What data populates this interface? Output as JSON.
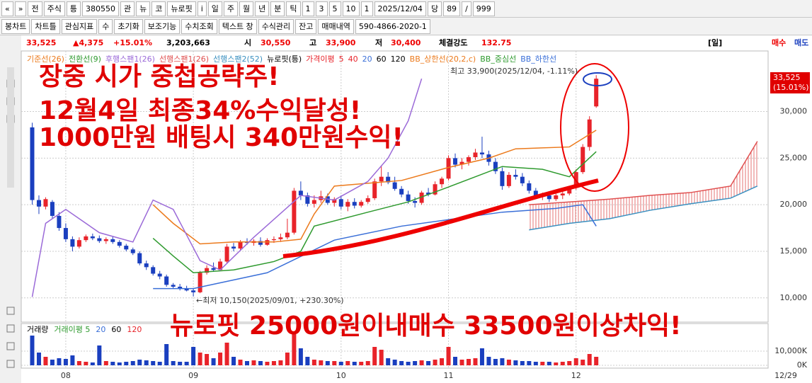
{
  "toolbar": {
    "row1": [
      "«",
      "»",
      "전",
      "주식",
      "틍",
      "380550",
      "관",
      "뉴",
      "코",
      "뉴로핏",
      "i",
      "일",
      "주",
      "월",
      "년",
      "분",
      "틱",
      "1",
      "3",
      "5",
      "10",
      "1",
      "2025/12/04",
      "당",
      "89",
      "/",
      "999"
    ],
    "row2": [
      "봉차트",
      "차트틀",
      "관심지표",
      "수",
      "초기화",
      "보조기능",
      "수치조회",
      "텍스트 창",
      "수식관리",
      "잔고",
      "매매내역",
      "590-4866-2020-1"
    ]
  },
  "info": [
    "33,525",
    "▲4,375",
    "+15.01%",
    "3,203,663",
    "시",
    "30,550",
    "고",
    "33,900",
    "저",
    "30,400",
    "체결강도",
    "132.75",
    "[일]",
    "매수",
    "매도"
  ],
  "chart_data": [
    {
      "type": "candlestick",
      "xlim": [
        -1,
        109.6
      ],
      "ylim": [
        7400,
        36500
      ],
      "yticks": [
        {
          "value": 10000,
          "label": "10,000"
        },
        {
          "value": 15000,
          "label": "15,000"
        },
        {
          "value": 20000,
          "label": "20,000"
        },
        {
          "value": 25000,
          "label": "25,000"
        },
        {
          "value": 30000,
          "label": "30,000"
        }
      ],
      "grid": true,
      "up_color": "#e8232a",
      "down_color": "#1a3fbf",
      "ohlc": [
        [
          28300,
          28800,
          20000,
          20500
        ],
        [
          20500,
          21000,
          19000,
          19800
        ],
        [
          19800,
          20800,
          19500,
          20600
        ],
        [
          20300,
          20500,
          18500,
          18800
        ],
        [
          18800,
          19200,
          17200,
          17500
        ],
        [
          17500,
          18000,
          16000,
          16300
        ],
        [
          16300,
          16600,
          15000,
          15500
        ],
        [
          15500,
          16500,
          15300,
          16200
        ],
        [
          16200,
          16800,
          16000,
          16600
        ],
        [
          16600,
          16900,
          16200,
          16400
        ],
        [
          16400,
          16700,
          15900,
          16100
        ],
        [
          16100,
          16500,
          15800,
          16300
        ],
        [
          16300,
          16600,
          15800,
          16000
        ],
        [
          16000,
          16200,
          15400,
          15600
        ],
        [
          15600,
          15800,
          15000,
          15200
        ],
        [
          15200,
          15400,
          14600,
          14800
        ],
        [
          14800,
          15000,
          13500,
          13700
        ],
        [
          13700,
          14000,
          13000,
          13300
        ],
        [
          13300,
          13500,
          12400,
          12600
        ],
        [
          12600,
          12900,
          12000,
          12300
        ],
        [
          12300,
          12500,
          11200,
          11400
        ],
        [
          11400,
          11600,
          11000,
          11200
        ],
        [
          11200,
          11500,
          10800,
          11000
        ],
        [
          11000,
          11300,
          10700,
          10800
        ],
        [
          10800,
          11000,
          10150,
          10600
        ],
        [
          10600,
          12900,
          10500,
          12700
        ],
        [
          12700,
          13500,
          12500,
          13200
        ],
        [
          13200,
          13800,
          12800,
          13000
        ],
        [
          13000,
          14200,
          12900,
          13900
        ],
        [
          13900,
          15800,
          13700,
          15500
        ],
        [
          15500,
          15900,
          15000,
          15300
        ],
        [
          15300,
          16200,
          15100,
          16000
        ],
        [
          16000,
          16400,
          15700,
          15900
        ],
        [
          15900,
          16300,
          15600,
          16100
        ],
        [
          16100,
          16500,
          15500,
          15700
        ],
        [
          15700,
          16400,
          15600,
          16200
        ],
        [
          16200,
          16600,
          15900,
          16300
        ],
        [
          16300,
          16900,
          16000,
          16500
        ],
        [
          16500,
          18500,
          16300,
          17000
        ],
        [
          17000,
          21800,
          16800,
          21500
        ],
        [
          21500,
          22500,
          20500,
          21000
        ],
        [
          21000,
          21300,
          19800,
          20100
        ],
        [
          20100,
          21000,
          19700,
          20500
        ],
        [
          20500,
          21500,
          20200,
          20900
        ],
        [
          20900,
          21200,
          20000,
          20200
        ],
        [
          20200,
          20800,
          19800,
          20600
        ],
        [
          20600,
          21000,
          19500,
          19800
        ],
        [
          19800,
          20600,
          19300,
          20300
        ],
        [
          20300,
          20700,
          19600,
          19900
        ],
        [
          19900,
          20500,
          19700,
          20300
        ],
        [
          20300,
          21000,
          20100,
          20700
        ],
        [
          20700,
          22800,
          20500,
          22500
        ],
        [
          22500,
          24200,
          22000,
          23000
        ],
        [
          23000,
          23500,
          22200,
          22400
        ],
        [
          22400,
          23000,
          21500,
          21700
        ],
        [
          21700,
          22000,
          20800,
          21100
        ],
        [
          21100,
          21500,
          20100,
          20400
        ],
        [
          20400,
          20800,
          19700,
          20200
        ],
        [
          20200,
          21500,
          20000,
          21300
        ],
        [
          21300,
          21800,
          20900,
          21100
        ],
        [
          21100,
          22500,
          21000,
          22200
        ],
        [
          22200,
          23000,
          21800,
          22800
        ],
        [
          22800,
          25300,
          22600,
          25000
        ],
        [
          25000,
          25500,
          24000,
          24300
        ],
        [
          24300,
          25000,
          23800,
          24600
        ],
        [
          24600,
          25300,
          24200,
          25100
        ],
        [
          25100,
          26000,
          24800,
          25600
        ],
        [
          25600,
          27300,
          25000,
          25400
        ],
        [
          25400,
          25800,
          24200,
          24600
        ],
        [
          24600,
          25000,
          23300,
          23600
        ],
        [
          23600,
          24000,
          21600,
          22000
        ],
        [
          22000,
          23500,
          21800,
          23200
        ],
        [
          23200,
          23800,
          22700,
          23000
        ],
        [
          23000,
          23400,
          22000,
          22300
        ],
        [
          22300,
          22600,
          21200,
          21500
        ],
        [
          21500,
          21800,
          20600,
          20900
        ],
        [
          20900,
          21300,
          20500,
          21000
        ],
        [
          21000,
          21300,
          20300,
          20600
        ],
        [
          20600,
          21200,
          20400,
          21000
        ],
        [
          21000,
          21400,
          20600,
          21200
        ],
        [
          21200,
          22000,
          21000,
          21800
        ],
        [
          21800,
          23800,
          21600,
          23500
        ],
        [
          23500,
          26500,
          23300,
          26200
        ],
        [
          26200,
          29500,
          25800,
          29150
        ],
        [
          30550,
          33900,
          30400,
          33525
        ]
      ],
      "series": [
        {
          "name": "기준선(26)",
          "color": "#ec7a1c",
          "x": [
            18,
            21,
            25,
            30,
            36,
            40,
            42,
            45,
            50,
            55,
            62,
            68,
            72,
            80,
            84
          ],
          "values": [
            20000,
            18000,
            15800,
            16000,
            16000,
            16300,
            19000,
            22000,
            22300,
            22600,
            24000,
            25000,
            26000,
            26200,
            28000
          ]
        },
        {
          "name": "전환선(9)",
          "color": "#2e9a2e",
          "x": [
            18,
            21,
            24,
            30,
            36,
            40,
            42,
            50,
            56,
            62,
            70,
            76,
            80,
            84
          ],
          "values": [
            16400,
            14500,
            12700,
            13000,
            13900,
            15000,
            17700,
            19200,
            20300,
            21900,
            24100,
            23800,
            23000,
            25700
          ]
        },
        {
          "name": "후행스팬1(26)",
          "color": "#9b6ad8",
          "x": [
            0,
            2,
            5,
            10,
            15,
            18,
            21,
            25,
            28,
            33,
            40,
            45,
            50,
            53,
            56,
            58
          ],
          "values": [
            10100,
            18000,
            19500,
            17000,
            16000,
            20500,
            19500,
            14000,
            13000,
            16500,
            21000,
            20500,
            22500,
            25000,
            29000,
            33525
          ]
        },
        {
          "name": "선행스팬1(26)",
          "color": "#e05050",
          "x": [
            74,
            80,
            86,
            92,
            98,
            104,
            108
          ],
          "values": [
            20000,
            20300,
            20600,
            21000,
            21300,
            22000,
            26800
          ]
        },
        {
          "name": "선행스팬2(52)",
          "color": "#3a90c0",
          "x": [
            74,
            80,
            86,
            92,
            98,
            104,
            108
          ],
          "values": [
            17300,
            18000,
            18500,
            19400,
            20100,
            20700,
            22000
          ]
        },
        {
          "name": "BB_하한선",
          "color": "#3a6fd8",
          "x": [
            18,
            24,
            35,
            45,
            55,
            62,
            70,
            78,
            82,
            84
          ],
          "values": [
            11000,
            11000,
            12700,
            16200,
            17700,
            18400,
            19200,
            19600,
            20000,
            17700
          ]
        }
      ],
      "legend_extra": [
        {
          "label": "뉴로핏(틍)",
          "color": "#000000"
        },
        {
          "label": "가격이평",
          "color": "#e8232a"
        },
        {
          "label": "5",
          "color": "#e8232a"
        },
        {
          "label": "40",
          "color": "#e8232a"
        },
        {
          "label": "20",
          "color": "#3a6fd8"
        },
        {
          "label": "60",
          "color": "#000000"
        },
        {
          "label": "120",
          "color": "#000000"
        },
        {
          "label": "BB_상한선(20,2,c)",
          "color": "#ec7a1c"
        },
        {
          "label": "BB_중심선",
          "color": "#2e9a2e"
        }
      ],
      "annotations": [
        "장중 시가 중첩공략주!",
        "12월4일 최종34%수익달성!",
        "1000만원 배팅시 340만원수익!",
        "뉴로핏 25000원이내매수 33500원이상차익!",
        "최고 33,900(2025/12/04, -1.11%)",
        "←최저 10,150(2025/09/01, +230.30%)"
      ],
      "price_tag": [
        "33,525",
        "(15.01%)"
      ]
    },
    {
      "type": "bar",
      "xlim": [
        -1,
        109.6
      ],
      "ylim": [
        0,
        27000
      ],
      "yticks": [
        {
          "value": 0,
          "label": "0K"
        },
        {
          "value": 10000,
          "label": "10,000K"
        }
      ],
      "xticks": [
        {
          "value": 5,
          "label": "08"
        },
        {
          "value": 24,
          "label": "09"
        },
        {
          "value": 46,
          "label": "10"
        },
        {
          "value": 62,
          "label": "11"
        },
        {
          "value": 81,
          "label": "12"
        }
      ],
      "x_end_label": "12/29",
      "grid": true,
      "legend": [
        {
          "label": "거래량",
          "color": "#000000"
        },
        {
          "label": "거래이평 5",
          "color": "#2e9a2e"
        },
        {
          "label": "20",
          "color": "#3a6fd8"
        },
        {
          "label": "60",
          "color": "#000000"
        },
        {
          "label": "120",
          "color": "#e8232a"
        }
      ],
      "values": [
        21000,
        9000,
        6000,
        4000,
        5000,
        4500,
        7000,
        3000,
        2500,
        2000,
        14000,
        3000,
        2500,
        2000,
        2500,
        3000,
        4000,
        3500,
        3000,
        2500,
        15000,
        3000,
        2500,
        2500,
        13000,
        9000,
        8000,
        5000,
        9000,
        16000,
        6000,
        4000,
        3000,
        3500,
        3000,
        2500,
        3000,
        3500,
        9000,
        22000,
        12000,
        6000,
        4000,
        3500,
        3000,
        3000,
        2500,
        3000,
        2500,
        2500,
        3000,
        13000,
        11000,
        5000,
        4000,
        3000,
        2500,
        3000,
        3500,
        3000,
        4000,
        5000,
        13000,
        6000,
        4000,
        4500,
        5000,
        12000,
        6000,
        4500,
        5000,
        4000,
        3500,
        3000,
        3000,
        2500,
        2500,
        2500,
        2000,
        2500,
        3000,
        5000,
        4000,
        8000,
        6000
      ]
    }
  ]
}
